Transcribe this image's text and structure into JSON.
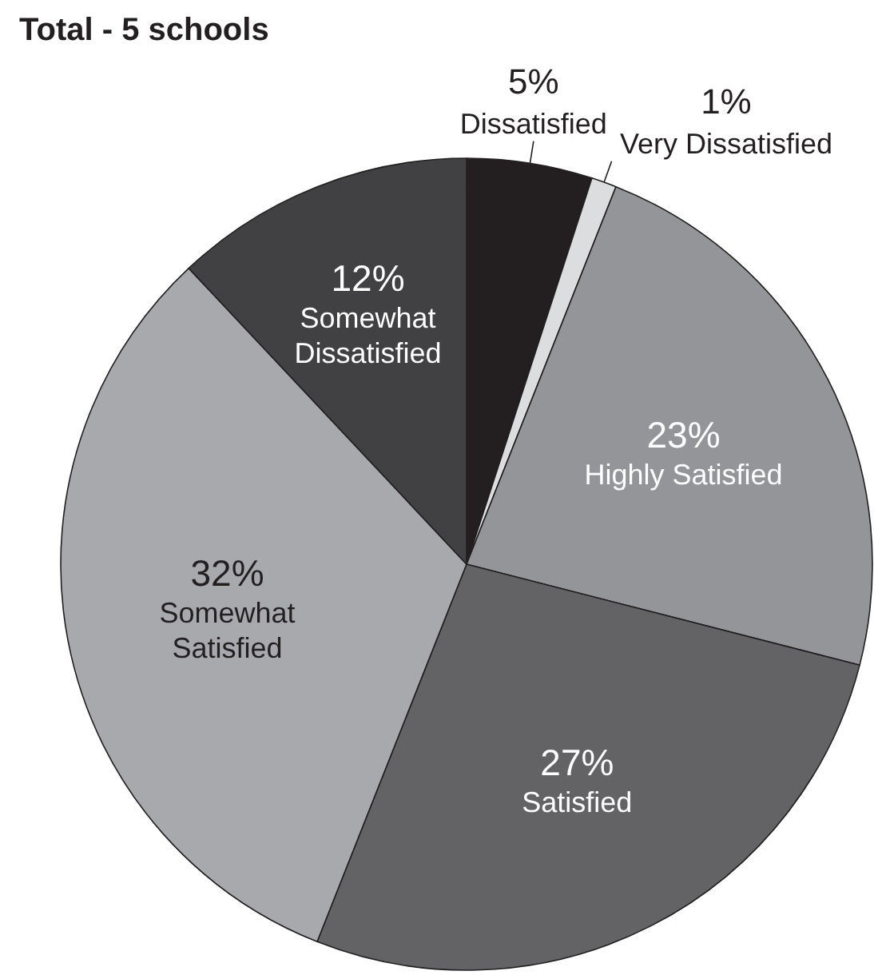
{
  "chart_data": {
    "type": "pie",
    "title": "Total - 5 schools",
    "categories": [
      "Dissatisfied",
      "Very Dissatisfied",
      "Highly Satisfied",
      "Satisfied",
      "Somewhat Satisfied",
      "Somewhat Dissatisfied"
    ],
    "values": [
      5,
      1,
      23,
      27,
      32,
      12
    ],
    "value_labels": [
      "5%",
      "1%",
      "23%",
      "27%",
      "32%",
      "12%"
    ],
    "colors": [
      "#231f20",
      "#dcdddf",
      "#939598",
      "#636366",
      "#a7a9ac",
      "#414042"
    ]
  }
}
